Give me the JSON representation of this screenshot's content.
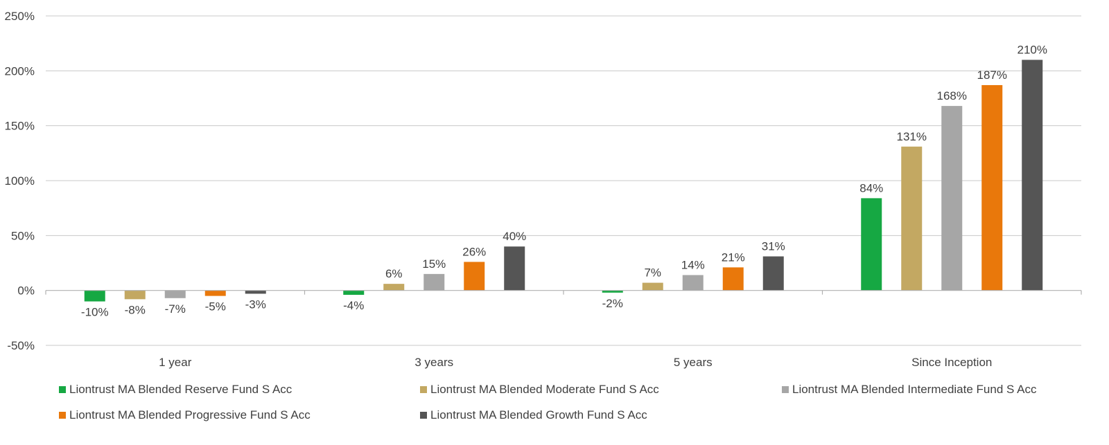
{
  "chart_data": {
    "type": "bar",
    "categories": [
      "1 year",
      "3 years",
      "5 years",
      "Since Inception"
    ],
    "series": [
      {
        "name": "Liontrust MA Blended Reserve Fund S Acc",
        "color": "#16a843",
        "values": [
          -10,
          -4,
          -2,
          84
        ],
        "labels": [
          "-10%",
          "-4%",
          "-2%",
          "84%"
        ]
      },
      {
        "name": "Liontrust MA Blended Moderate Fund S Acc",
        "color": "#c3a862",
        "values": [
          -8,
          6,
          7,
          131
        ],
        "labels": [
          "-8%",
          "6%",
          "7%",
          "131%"
        ]
      },
      {
        "name": "Liontrust MA Blended Intermediate Fund S Acc",
        "color": "#a6a6a6",
        "values": [
          -7,
          15,
          14,
          168
        ],
        "labels": [
          "-7%",
          "15%",
          "14%",
          "168%"
        ]
      },
      {
        "name": "Liontrust MA Blended Progressive Fund S Acc",
        "color": "#e9780b",
        "values": [
          -5,
          26,
          21,
          187
        ],
        "labels": [
          "-5%",
          "26%",
          "21%",
          "187%"
        ]
      },
      {
        "name": "Liontrust MA Blended Growth Fund S Acc",
        "color": "#555555",
        "values": [
          -3,
          40,
          31,
          210
        ],
        "labels": [
          "-3%",
          "40%",
          "31%",
          "210%"
        ]
      }
    ],
    "ylim": [
      -50,
      250
    ],
    "yticks": [
      -50,
      0,
      50,
      100,
      150,
      200,
      250
    ],
    "ytick_labels": [
      "-50%",
      "0%",
      "50%",
      "100%",
      "150%",
      "200%",
      "250%"
    ],
    "grid": true,
    "legend_position": "bottom"
  }
}
